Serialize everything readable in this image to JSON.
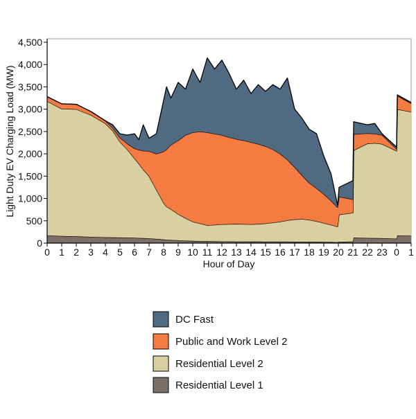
{
  "chart_data": {
    "type": "area",
    "stacked": true,
    "title": "",
    "xlabel": "Hour of Day",
    "ylabel": "Light Duty EV Charging Load (MW)",
    "xlim": [
      0,
      25
    ],
    "ylim": [
      0,
      4500
    ],
    "grid": false,
    "legend_position": "bottom",
    "x_tick_labels": [
      "0",
      "1",
      "2",
      "3",
      "4",
      "5",
      "6",
      "7",
      "8",
      "9",
      "10",
      "11",
      "12",
      "13",
      "14",
      "15",
      "16",
      "17",
      "18",
      "19",
      "20",
      "21",
      "22",
      "23",
      "0",
      "1"
    ],
    "y_tick_labels": [
      "0",
      "500",
      "1,000",
      "1,500",
      "2,000",
      "2,500",
      "3,000",
      "3,500",
      "4,000",
      "4,500"
    ],
    "y_ticks": [
      0,
      500,
      1000,
      1500,
      2000,
      2500,
      3000,
      3500,
      4000,
      4500
    ],
    "x": [
      0,
      1,
      2,
      3,
      4,
      4.5,
      5,
      5.5,
      6,
      6.3,
      6.6,
      7,
      7.5,
      8,
      8.2,
      8.5,
      9,
      9.5,
      10,
      10.5,
      11,
      11.5,
      12,
      12.5,
      13,
      13.5,
      14,
      14.5,
      15,
      15.5,
      16,
      16.5,
      17,
      17.5,
      18,
      18.5,
      19,
      19.5,
      19.95,
      20.05,
      21,
      21.05,
      22,
      22.5,
      23,
      24,
      24.05,
      25
    ],
    "series": [
      {
        "name": "Residential Level 1",
        "color": "#7b7068",
        "values": [
          170,
          160,
          150,
          140,
          130,
          128,
          125,
          122,
          118,
          115,
          112,
          105,
          95,
          80,
          75,
          70,
          62,
          55,
          50,
          45,
          42,
          40,
          38,
          37,
          36,
          35,
          34,
          34,
          33,
          33,
          32,
          32,
          31,
          31,
          30,
          30,
          28,
          25,
          20,
          30,
          35,
          120,
          115,
          112,
          110,
          100,
          170,
          165
        ]
      },
      {
        "name": "Residential Level 2",
        "color": "#d8d0a1",
        "values": [
          3010,
          2850,
          2850,
          2730,
          2550,
          2392,
          2145,
          1978,
          1782,
          1665,
          1538,
          1395,
          1105,
          820,
          745,
          690,
          588,
          505,
          430,
          395,
          358,
          370,
          382,
          388,
          394,
          390,
          386,
          396,
          407,
          427,
          448,
          478,
          499,
          509,
          490,
          460,
          422,
          385,
          350,
          610,
          645,
          1960,
          2115,
          2128,
          2110,
          1965,
          2830,
          2775
        ]
      },
      {
        "name": "Public and Work Level 2",
        "color": "#f47c43",
        "values": [
          100,
          110,
          110,
          80,
          60,
          60,
          90,
          130,
          220,
          310,
          420,
          560,
          800,
          1150,
          1280,
          1440,
          1650,
          1860,
          2000,
          2060,
          2080,
          2040,
          2000,
          1945,
          1900,
          1875,
          1840,
          1790,
          1730,
          1640,
          1520,
          1360,
          1170,
          980,
          830,
          740,
          650,
          540,
          430,
          400,
          300,
          360,
          230,
          210,
          200,
          45,
          300,
          190
        ]
      },
      {
        "name": "DC Fast",
        "color": "#506a82",
        "values": [
          0,
          0,
          0,
          0,
          0,
          70,
          90,
          190,
          330,
          230,
          580,
          290,
          450,
          1150,
          1400,
          1050,
          1300,
          1030,
          1420,
          1100,
          1670,
          1450,
          1680,
          1430,
          1120,
          1350,
          1090,
          1330,
          1230,
          1450,
          1450,
          1830,
          1300,
          1280,
          1200,
          1220,
          850,
          600,
          50,
          210,
          420,
          280,
          190,
          230,
          30,
          40,
          20,
          20
        ]
      }
    ],
    "legend": [
      "DC Fast",
      "Public and Work Level 2",
      "Residential Level 2",
      "Residential Level 1"
    ]
  }
}
